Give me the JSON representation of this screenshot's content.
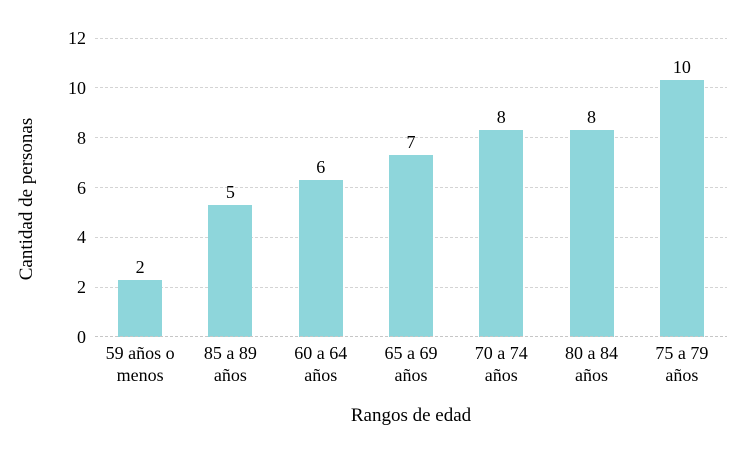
{
  "chart_data": {
    "type": "bar",
    "title": "",
    "categories": [
      "59 años o menos",
      "85 a 89 años",
      "60 a 64 años",
      "65 a 69 años",
      "70 a 74 años",
      "80 a 84 años",
      "75 a 79 años"
    ],
    "values": [
      2,
      5,
      6,
      7,
      8,
      8,
      10
    ],
    "bar_heights_visual": [
      2.3,
      5.3,
      6.3,
      7.3,
      8.3,
      8.3,
      10.3
    ],
    "xlabel": "Rangos de edad",
    "ylabel": "Cantidad de personas",
    "yticks": [
      0,
      2,
      4,
      6,
      8,
      10,
      12
    ],
    "ylim": [
      0,
      12
    ],
    "grid": "horizontal-dotted",
    "legend": "none",
    "data_labels": "above-bars",
    "colors": {
      "bar": "#8ED6DB",
      "gridline": "#D4D4D4",
      "axis_line": "#C6C6C6",
      "text": "#000000",
      "background": "#FFFFFF"
    }
  }
}
